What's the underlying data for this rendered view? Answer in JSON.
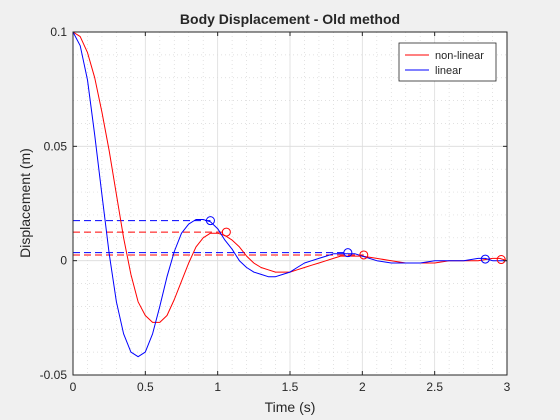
{
  "chart_data": {
    "type": "line",
    "title": "Body Displacement - Old method",
    "xlabel": "Time (s)",
    "ylabel": "Displacement (m)",
    "xlim": [
      0,
      3
    ],
    "ylim": [
      -0.05,
      0.1
    ],
    "xticks": [
      0,
      0.5,
      1,
      1.5,
      2,
      2.5,
      3
    ],
    "xtick_labels": [
      "0",
      "0.5",
      "1",
      "1.5",
      "2",
      "2.5",
      "3"
    ],
    "yticks": [
      -0.05,
      0,
      0.05,
      0.1
    ],
    "ytick_labels": [
      "-0.05",
      "0",
      "0.05",
      "0.1"
    ],
    "grid": true,
    "minor_grid": true,
    "legend_position": "top-right",
    "series": [
      {
        "name": "non-linear",
        "color": "#ff0000",
        "x": [
          0,
          0.05,
          0.1,
          0.15,
          0.2,
          0.25,
          0.3,
          0.35,
          0.4,
          0.45,
          0.5,
          0.55,
          0.6,
          0.65,
          0.7,
          0.75,
          0.8,
          0.85,
          0.9,
          0.95,
          1.0,
          1.05,
          1.1,
          1.15,
          1.2,
          1.25,
          1.3,
          1.35,
          1.4,
          1.45,
          1.5,
          1.55,
          1.6,
          1.65,
          1.7,
          1.75,
          1.8,
          1.85,
          1.9,
          1.95,
          2.0,
          2.1,
          2.2,
          2.3,
          2.4,
          2.5,
          2.6,
          2.7,
          2.8,
          2.9,
          2.95,
          3.0
        ],
        "y": [
          0.1,
          0.098,
          0.091,
          0.08,
          0.065,
          0.048,
          0.029,
          0.01,
          -0.006,
          -0.018,
          -0.024,
          -0.027,
          -0.027,
          -0.024,
          -0.017,
          -0.009,
          -0.001,
          0.006,
          0.01,
          0.012,
          0.012,
          0.011,
          0.009,
          0.006,
          0.002,
          -0.001,
          -0.003,
          -0.004,
          -0.005,
          -0.005,
          -0.005,
          -0.004,
          -0.003,
          -0.002,
          -0.001,
          0.0,
          0.001,
          0.002,
          0.002,
          0.002,
          0.002,
          0.001,
          0.0,
          -0.001,
          -0.001,
          -0.001,
          0.0,
          0.0,
          0.0,
          0.001,
          0.001,
          0.0
        ]
      },
      {
        "name": "linear",
        "color": "#0000ff",
        "x": [
          0,
          0.05,
          0.1,
          0.15,
          0.2,
          0.25,
          0.3,
          0.35,
          0.4,
          0.45,
          0.5,
          0.55,
          0.6,
          0.65,
          0.7,
          0.75,
          0.8,
          0.85,
          0.9,
          0.95,
          1.0,
          1.05,
          1.1,
          1.15,
          1.2,
          1.25,
          1.3,
          1.35,
          1.4,
          1.45,
          1.5,
          1.55,
          1.6,
          1.65,
          1.7,
          1.75,
          1.8,
          1.85,
          1.9,
          1.95,
          2.0,
          2.1,
          2.2,
          2.3,
          2.4,
          2.5,
          2.6,
          2.7,
          2.8,
          2.85,
          2.9,
          3.0
        ],
        "y": [
          0.1,
          0.094,
          0.079,
          0.055,
          0.029,
          0.003,
          -0.018,
          -0.032,
          -0.04,
          -0.042,
          -0.04,
          -0.032,
          -0.02,
          -0.007,
          0.004,
          0.012,
          0.016,
          0.018,
          0.018,
          0.017,
          0.014,
          0.009,
          0.005,
          0.0,
          -0.003,
          -0.005,
          -0.006,
          -0.007,
          -0.007,
          -0.006,
          -0.005,
          -0.003,
          -0.001,
          0.0,
          0.001,
          0.002,
          0.003,
          0.003,
          0.003,
          0.003,
          0.002,
          0.0,
          -0.001,
          -0.001,
          -0.001,
          0.0,
          0.0,
          0.0,
          0.001,
          0.001,
          0.0,
          0.0
        ]
      }
    ],
    "peak_markers": [
      {
        "series": "non-linear",
        "color": "#ff0000",
        "points": [
          [
            1.06,
            0.0125
          ],
          [
            2.01,
            0.0025
          ],
          [
            2.96,
            0.0005
          ]
        ]
      },
      {
        "series": "linear",
        "color": "#0000ff",
        "points": [
          [
            0.95,
            0.0175
          ],
          [
            1.9,
            0.0035
          ],
          [
            2.85,
            0.0007
          ]
        ]
      }
    ],
    "reference_lines": [
      {
        "color": "#0000ff",
        "y": 0.0175,
        "x_end": 0.95
      },
      {
        "color": "#ff0000",
        "y": 0.0125,
        "x_end": 1.06
      },
      {
        "color": "#0000ff",
        "y": 0.0035,
        "x_end": 1.9
      },
      {
        "color": "#ff0000",
        "y": 0.0025,
        "x_end": 2.01
      }
    ]
  }
}
